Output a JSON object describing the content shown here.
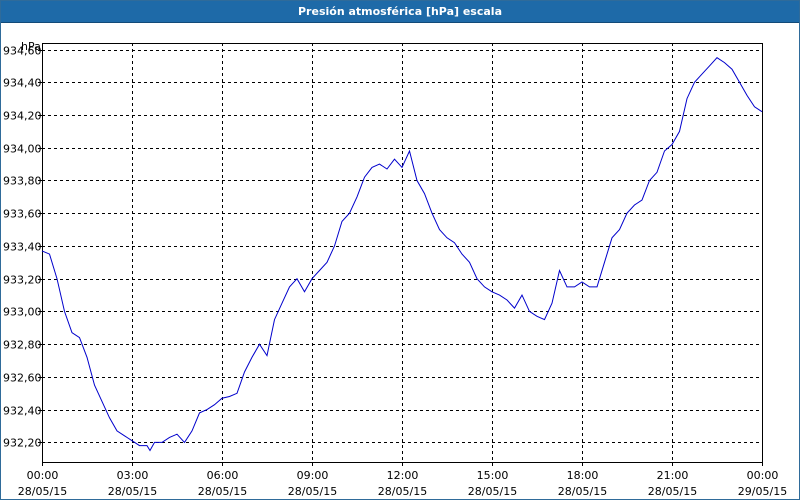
{
  "window": {
    "title": "Presión atmosférica [hPa] escala"
  },
  "colors": {
    "title_bar": "#1e6aa8",
    "line": "#0000cc",
    "grid": "#000000"
  },
  "chart_data": {
    "type": "line",
    "title": "Presión atmosférica [hPa] escala",
    "ylabel": "hPa",
    "xlabel": "",
    "ylim": [
      932.08,
      934.64
    ],
    "yticks": [
      "932,20",
      "932,40",
      "932,60",
      "932,80",
      "933,00",
      "933,20",
      "933,40",
      "933,60",
      "933,80",
      "934,00",
      "934,20",
      "934,40",
      "934,60"
    ],
    "ytick_values": [
      932.2,
      932.4,
      932.6,
      932.8,
      933.0,
      933.2,
      933.4,
      933.6,
      933.8,
      934.0,
      934.2,
      934.4,
      934.6
    ],
    "xlim_hours": [
      0,
      24
    ],
    "xticks": [
      {
        "time": "00:00",
        "date": "28/05/15"
      },
      {
        "time": "03:00",
        "date": "28/05/15"
      },
      {
        "time": "06:00",
        "date": "28/05/15"
      },
      {
        "time": "09:00",
        "date": "28/05/15"
      },
      {
        "time": "12:00",
        "date": "28/05/15"
      },
      {
        "time": "15:00",
        "date": "28/05/15"
      },
      {
        "time": "18:00",
        "date": "28/05/15"
      },
      {
        "time": "21:00",
        "date": "28/05/15"
      },
      {
        "time": "00:00",
        "date": "29/05/15"
      }
    ],
    "grid": true,
    "legend": "none",
    "series": [
      {
        "x_hours": [
          0.0,
          0.25,
          0.5,
          0.75,
          1.0,
          1.25,
          1.5,
          1.75,
          2.0,
          2.25,
          2.5,
          2.75,
          3.0,
          3.25,
          3.5,
          3.6,
          3.75,
          4.0,
          4.25,
          4.5,
          4.75,
          5.0,
          5.25,
          5.5,
          5.75,
          6.0,
          6.25,
          6.5,
          6.75,
          7.0,
          7.25,
          7.5,
          7.75,
          8.0,
          8.25,
          8.5,
          8.75,
          9.0,
          9.25,
          9.5,
          9.75,
          10.0,
          10.25,
          10.5,
          10.75,
          11.0,
          11.25,
          11.5,
          11.75,
          12.0,
          12.25,
          12.5,
          12.75,
          13.0,
          13.25,
          13.5,
          13.75,
          14.0,
          14.25,
          14.5,
          14.75,
          15.0,
          15.25,
          15.5,
          15.75,
          16.0,
          16.25,
          16.5,
          16.75,
          17.0,
          17.25,
          17.5,
          17.75,
          18.0,
          18.25,
          18.5,
          18.75,
          19.0,
          19.25,
          19.5,
          19.75,
          20.0,
          20.25,
          20.5,
          20.75,
          21.0,
          21.25,
          21.5,
          21.75,
          22.0,
          22.25,
          22.5,
          22.75,
          23.0,
          23.25,
          23.5,
          23.75,
          24.0
        ],
        "y": [
          933.37,
          933.35,
          933.2,
          933.0,
          932.87,
          932.84,
          932.72,
          932.55,
          932.45,
          932.35,
          932.27,
          932.24,
          932.21,
          932.18,
          932.18,
          932.15,
          932.2,
          932.2,
          932.23,
          932.25,
          932.2,
          932.27,
          932.38,
          932.4,
          932.43,
          932.47,
          932.48,
          932.5,
          932.63,
          932.72,
          932.8,
          932.73,
          932.95,
          933.05,
          933.15,
          933.2,
          933.12,
          933.2,
          933.25,
          933.3,
          933.4,
          933.55,
          933.6,
          933.7,
          933.82,
          933.88,
          933.9,
          933.87,
          933.93,
          933.88,
          933.98,
          933.8,
          933.72,
          933.6,
          933.5,
          933.45,
          933.42,
          933.35,
          933.3,
          933.2,
          933.15,
          933.12,
          933.1,
          933.07,
          933.02,
          933.1,
          933.0,
          932.97,
          932.95,
          933.05,
          933.25,
          933.15,
          933.15,
          933.18,
          933.15,
          933.15,
          933.3,
          933.45,
          933.5,
          933.6,
          933.65,
          933.68,
          933.8,
          933.85,
          933.98,
          934.02,
          934.1,
          934.3,
          934.4,
          934.45,
          934.5,
          934.55,
          934.52,
          934.48,
          934.4,
          934.32,
          934.25,
          934.22
        ]
      }
    ]
  }
}
